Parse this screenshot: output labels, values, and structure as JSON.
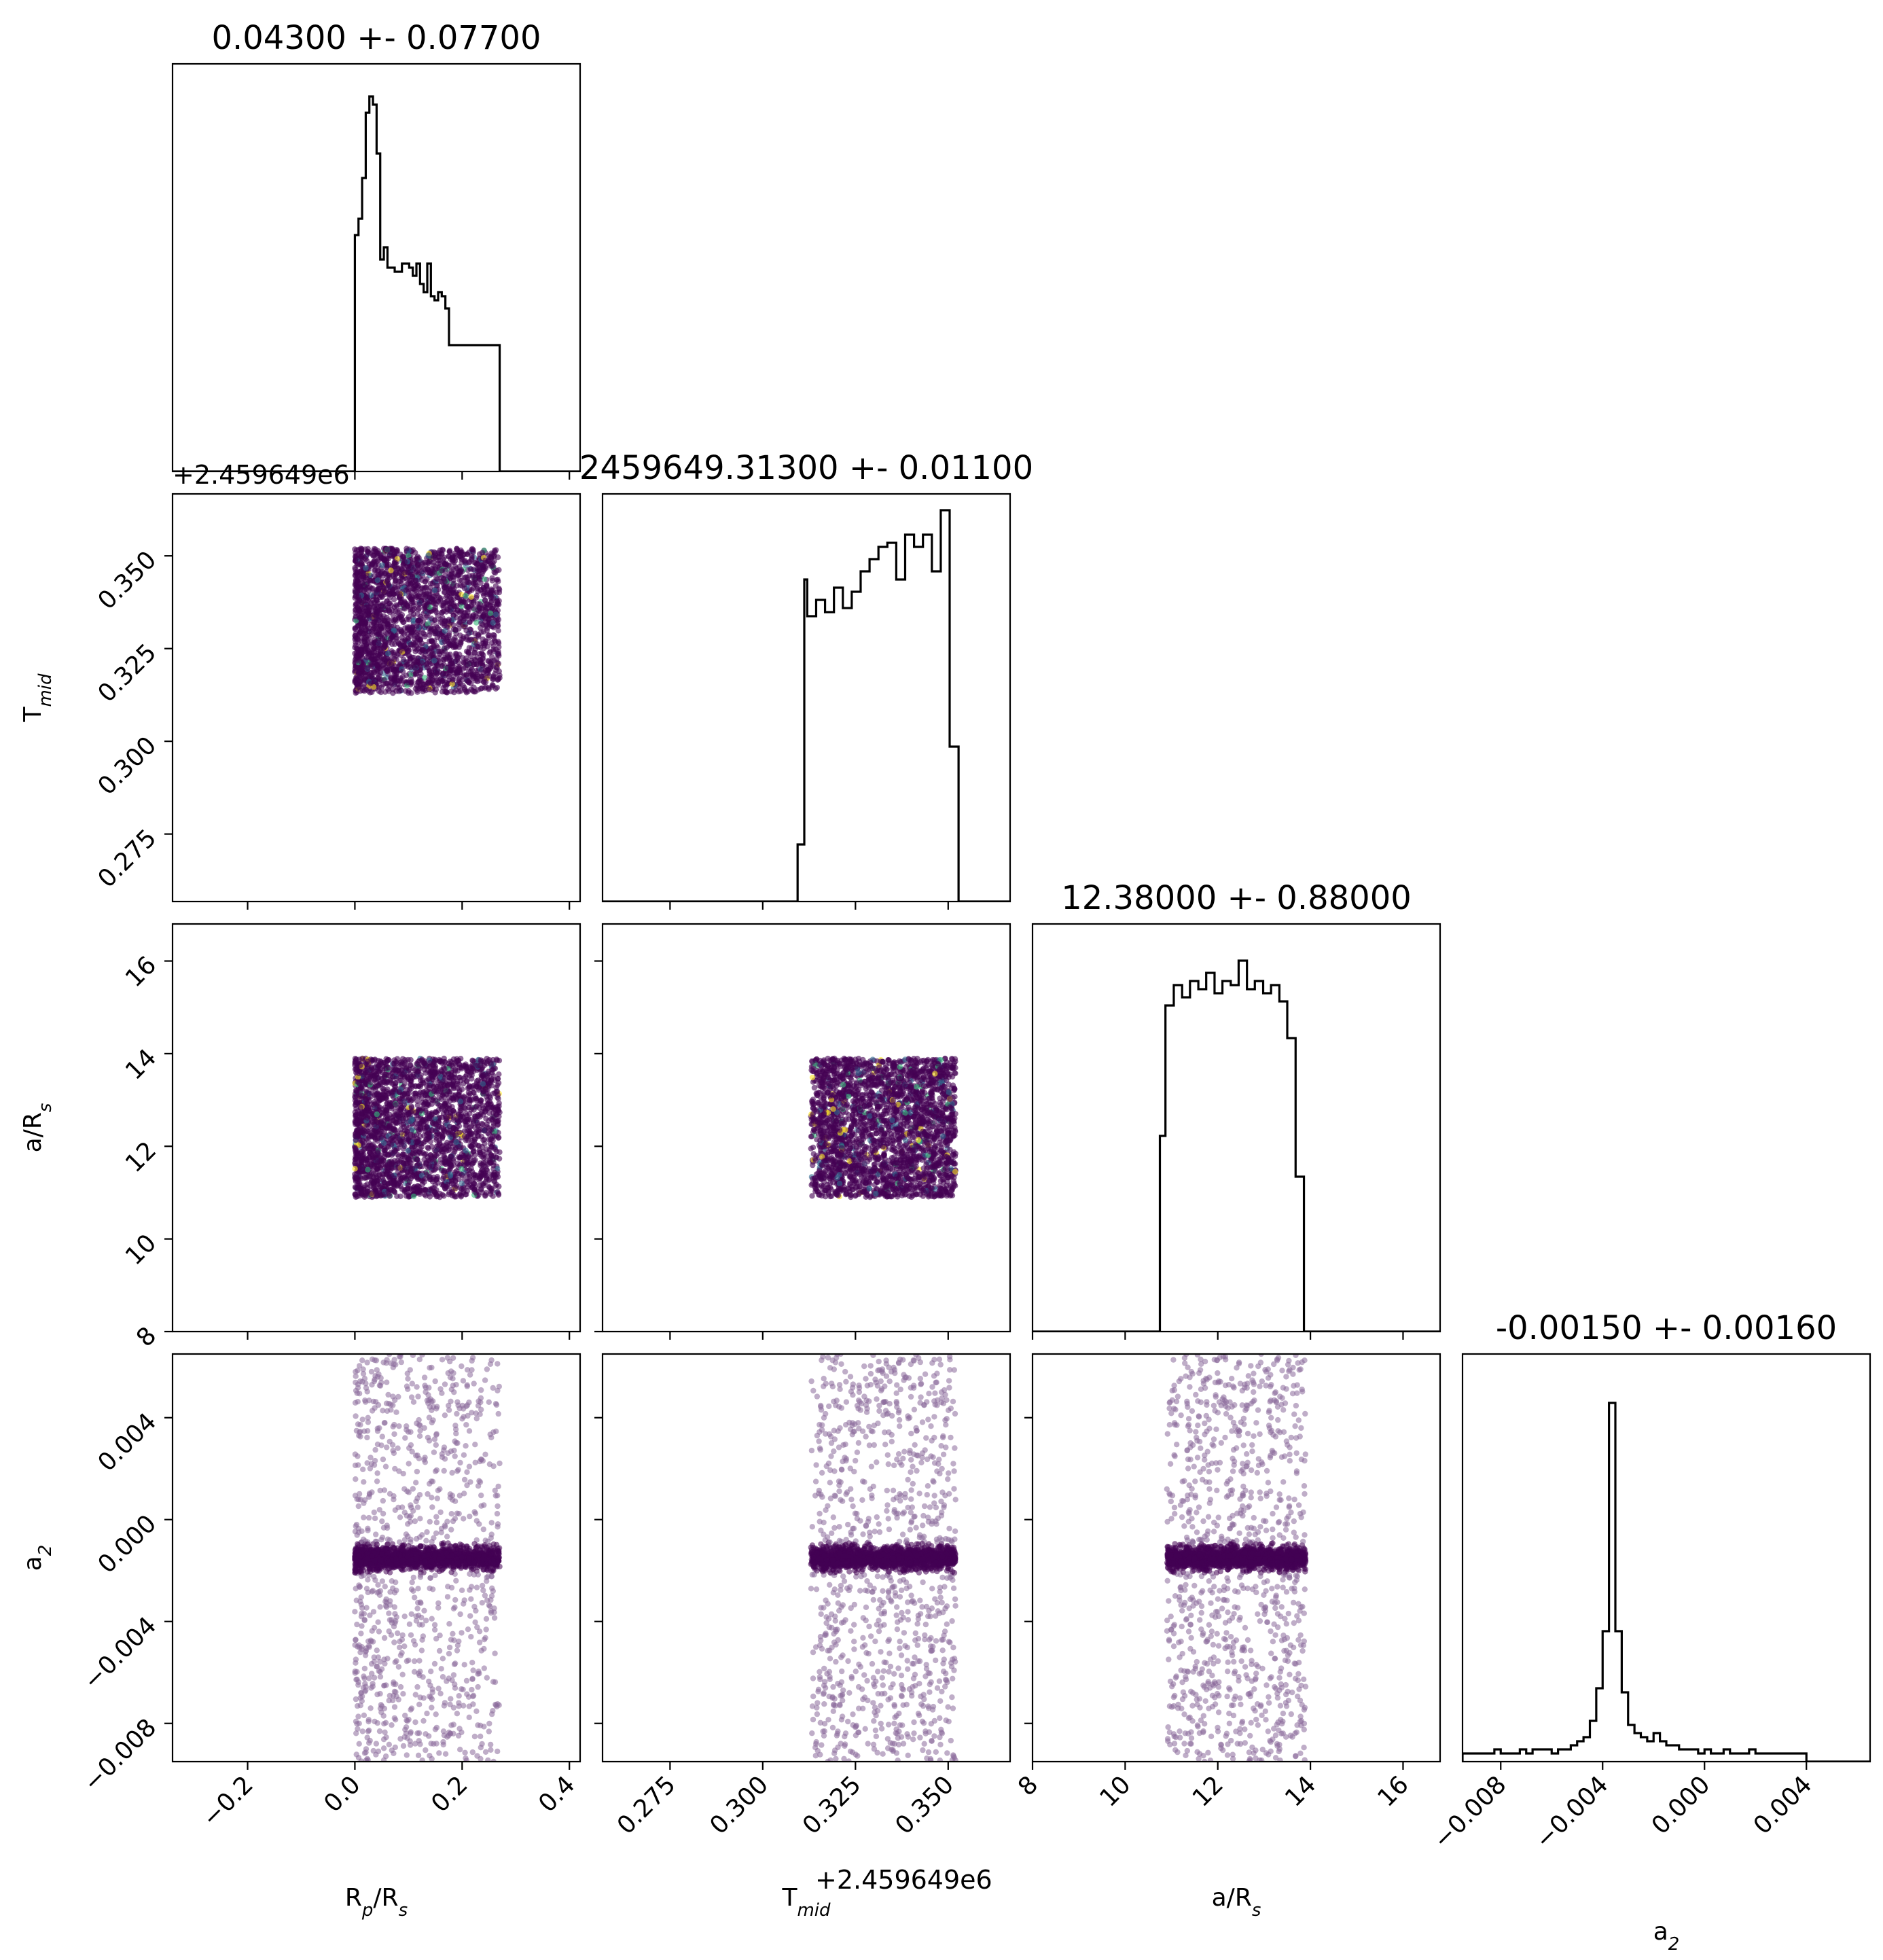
{
  "chart_data": {
    "type": "corner",
    "parameters": [
      {
        "key": "rp",
        "axis_label": "R_p/R_s",
        "axis_label_main": "R",
        "axis_label_sub": "p",
        "axis_label_tail": "/R",
        "axis_label_sub2": "s",
        "title": "0.04300 +- 0.07700",
        "range": [
          -0.34,
          0.42
        ],
        "ticks": [
          -0.2,
          0.0,
          0.2,
          0.4
        ],
        "tick_labels": [
          "−0.2",
          "0.0",
          "0.2",
          "0.4"
        ]
      },
      {
        "key": "tmid",
        "axis_label": "T_mid",
        "axis_label_main": "T",
        "axis_label_sub": "mid",
        "title": "2459649.31300 +- 0.01100",
        "range": [
          0.2568,
          0.3667
        ],
        "offset_text": "+2.459649e6",
        "ticks": [
          0.275,
          0.3,
          0.325,
          0.35
        ],
        "tick_labels": [
          "0.275",
          "0.300",
          "0.325",
          "0.350"
        ]
      },
      {
        "key": "ars",
        "axis_label": "a/R_s",
        "axis_label_main": "a/R",
        "axis_label_sub": "s",
        "title": "12.38000 +- 0.88000",
        "range": [
          8.0,
          16.8
        ],
        "ticks": [
          8,
          10,
          12,
          14,
          16
        ],
        "tick_labels": [
          "8",
          "10",
          "12",
          "14",
          "16"
        ]
      },
      {
        "key": "a2",
        "axis_label": "a_2",
        "axis_label_main": "a",
        "axis_label_sub": "2",
        "title": "-0.00150 +- 0.00160",
        "range": [
          -0.0095,
          0.0065
        ],
        "ticks": [
          -0.008,
          -0.004,
          0.0,
          0.004
        ],
        "tick_labels": [
          "−0.008",
          "−0.004",
          "0.000",
          "0.004"
        ]
      }
    ],
    "histograms": {
      "rp": {
        "edges_start": 0.0,
        "bin_width": 0.00675,
        "counts": [
          0.58,
          0.62,
          0.72,
          0.88,
          0.92,
          0.9,
          0.78,
          0.52,
          0.55,
          0.5,
          0.5,
          0.49,
          0.49,
          0.51,
          0.51,
          0.5,
          0.48,
          0.51,
          0.46,
          0.44,
          0.51,
          0.43,
          0.42,
          0.44,
          0.43,
          0.4,
          0.31,
          0.31,
          0.31,
          0.31,
          0.31,
          0.31,
          0.31,
          0.31,
          0.31,
          0.31,
          0.31,
          0.31,
          0.31,
          0.31
        ]
      },
      "tmid": {
        "edges": [
          0.3094,
          0.3112,
          0.312,
          0.3144,
          0.3168,
          0.3192,
          0.3216,
          0.324,
          0.3264,
          0.3288,
          0.3312,
          0.3336,
          0.336,
          0.3384,
          0.3408,
          0.3432,
          0.3456,
          0.348,
          0.3504,
          0.3528,
          0.354
        ],
        "counts": [
          0.14,
          0.79,
          0.7,
          0.74,
          0.71,
          0.77,
          0.72,
          0.76,
          0.81,
          0.84,
          0.87,
          0.88,
          0.79,
          0.9,
          0.87,
          0.9,
          0.81,
          0.96,
          0.38,
          0.0
        ]
      },
      "ars": {
        "edges": [
          10.75,
          10.87,
          11.05,
          11.23,
          11.4,
          11.58,
          11.75,
          11.93,
          12.1,
          12.28,
          12.45,
          12.63,
          12.8,
          12.98,
          13.15,
          13.33,
          13.5,
          13.68,
          13.86,
          14.04
        ],
        "counts": [
          0.48,
          0.8,
          0.85,
          0.82,
          0.86,
          0.84,
          0.88,
          0.83,
          0.86,
          0.85,
          0.91,
          0.84,
          0.86,
          0.83,
          0.85,
          0.81,
          0.72,
          0.38,
          0.0
        ]
      },
      "a2": {
        "edges_start": -0.0095,
        "bin_width": 0.00025,
        "counts": [
          0.02,
          0.02,
          0.02,
          0.02,
          0.02,
          0.03,
          0.02,
          0.02,
          0.02,
          0.03,
          0.02,
          0.03,
          0.03,
          0.03,
          0.02,
          0.03,
          0.03,
          0.04,
          0.05,
          0.06,
          0.1,
          0.18,
          0.32,
          0.88,
          0.32,
          0.17,
          0.09,
          0.07,
          0.06,
          0.05,
          0.07,
          0.05,
          0.04,
          0.04,
          0.03,
          0.03,
          0.03,
          0.02,
          0.03,
          0.02,
          0.02,
          0.03,
          0.02,
          0.02,
          0.02,
          0.03,
          0.02,
          0.02,
          0.02,
          0.02,
          0.02,
          0.02,
          0.02,
          0.02
        ]
      }
    },
    "samples": {
      "rp_range": [
        0.0,
        0.27
      ],
      "tmid_range": [
        0.313,
        0.352
      ],
      "ars_range": [
        10.9,
        13.9
      ],
      "a2_core_center": -0.0015,
      "a2_core_width": 0.0004,
      "a2_range": [
        -0.0095,
        0.0065
      ],
      "colormap": "viridis",
      "dominant_color": "#440154"
    }
  }
}
